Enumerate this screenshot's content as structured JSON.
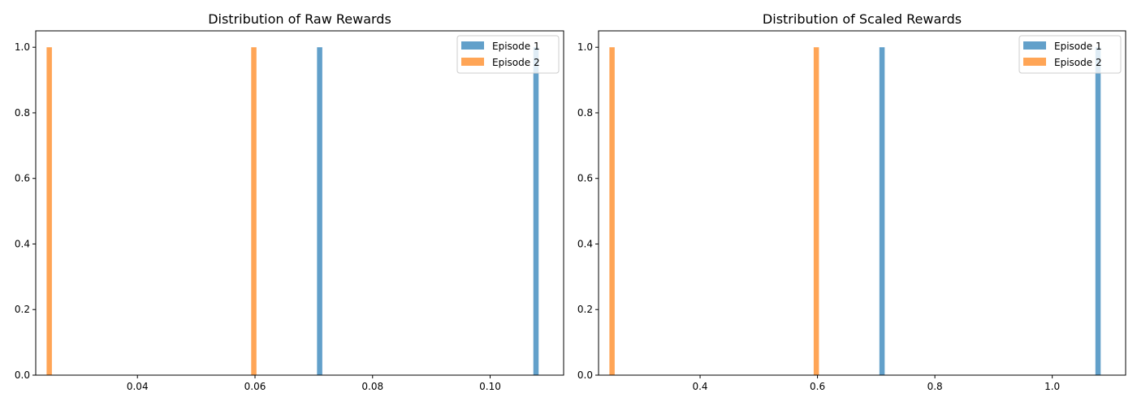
{
  "colors": {
    "episode_1": "#1f77b4",
    "episode_2": "#ff7f0e",
    "bar_alpha": 0.7
  },
  "chart_data": [
    {
      "type": "bar",
      "subtype": "histogram",
      "title": "Distribution of Raw Rewards",
      "xlabel": "",
      "ylabel": "",
      "xlim": [
        0.0227,
        0.1125
      ],
      "ylim": [
        0,
        1.05
      ],
      "xticks": [
        0.04,
        0.06,
        0.08,
        0.1
      ],
      "xtick_labels": [
        "0.04",
        "0.06",
        "0.08",
        "0.10"
      ],
      "yticks": [
        0.0,
        0.2,
        0.4,
        0.6,
        0.8,
        1.0
      ],
      "ytick_labels": [
        "0.0",
        "0.2",
        "0.4",
        "0.6",
        "0.8",
        "1.0"
      ],
      "bin_width": 0.0009,
      "grid": false,
      "legend_position": "top-right",
      "series": [
        {
          "name": "Episode 1",
          "color_key": "episode_1",
          "x": [
            0.071,
            0.1078
          ],
          "values": [
            1,
            1
          ]
        },
        {
          "name": "Episode 2",
          "color_key": "episode_2",
          "x": [
            0.025,
            0.0598
          ],
          "values": [
            1,
            1
          ]
        }
      ]
    },
    {
      "type": "bar",
      "subtype": "histogram",
      "title": "Distribution of Scaled Rewards",
      "xlabel": "",
      "ylabel": "",
      "xlim": [
        0.227,
        1.125
      ],
      "ylim": [
        0,
        1.05
      ],
      "xticks": [
        0.4,
        0.6,
        0.8,
        1.0
      ],
      "xtick_labels": [
        "0.4",
        "0.6",
        "0.8",
        "1.0"
      ],
      "yticks": [
        0.0,
        0.2,
        0.4,
        0.6,
        0.8,
        1.0
      ],
      "ytick_labels": [
        "0.0",
        "0.2",
        "0.4",
        "0.6",
        "0.8",
        "1.0"
      ],
      "bin_width": 0.009,
      "grid": false,
      "legend_position": "top-right",
      "series": [
        {
          "name": "Episode 1",
          "color_key": "episode_1",
          "x": [
            0.71,
            1.078
          ],
          "values": [
            1,
            1
          ]
        },
        {
          "name": "Episode 2",
          "color_key": "episode_2",
          "x": [
            0.25,
            0.598
          ],
          "values": [
            1,
            1
          ]
        }
      ]
    }
  ]
}
